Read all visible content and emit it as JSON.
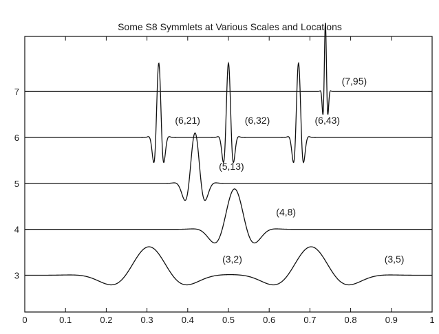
{
  "chart_data": {
    "type": "line",
    "title": "Some S8 Symmlets at Various Scales and Locations",
    "xlabel": "",
    "ylabel": "",
    "xlim": [
      0,
      1
    ],
    "ylim": [
      2.2,
      8.2
    ],
    "grid": false,
    "x_ticks": [
      {
        "value": 0,
        "label": "0"
      },
      {
        "value": 0.1,
        "label": "0.1"
      },
      {
        "value": 0.2,
        "label": "0.2"
      },
      {
        "value": 0.3,
        "label": "0.3"
      },
      {
        "value": 0.4,
        "label": "0.4"
      },
      {
        "value": 0.5,
        "label": "0.5"
      },
      {
        "value": 0.6,
        "label": "0.6"
      },
      {
        "value": 0.7,
        "label": "0.7"
      },
      {
        "value": 0.8,
        "label": "0.8"
      },
      {
        "value": 0.9,
        "label": "0.9"
      },
      {
        "value": 1,
        "label": "1"
      }
    ],
    "y_ticks": [
      {
        "value": 3,
        "label": "3"
      },
      {
        "value": 4,
        "label": "4"
      },
      {
        "value": 5,
        "label": "5"
      },
      {
        "value": 6,
        "label": "6"
      },
      {
        "value": 7,
        "label": "7"
      }
    ],
    "series": [
      {
        "baseline": 3,
        "atoms": [
          {
            "center": 0.305,
            "width": 0.11,
            "amp": 0.62,
            "label": "(3,2)"
          },
          {
            "center": 0.703,
            "width": 0.11,
            "amp": 0.62,
            "label": "(3,5)"
          }
        ]
      },
      {
        "baseline": 4,
        "atoms": [
          {
            "center": 0.515,
            "width": 0.058,
            "amp": 0.88,
            "label": "(4,8)"
          }
        ]
      },
      {
        "baseline": 5,
        "atoms": [
          {
            "center": 0.418,
            "width": 0.029,
            "amp": 1.1,
            "label": "(5,13)"
          }
        ]
      },
      {
        "baseline": 6,
        "atoms": [
          {
            "center": 0.329,
            "width": 0.0145,
            "amp": 1.62,
            "label": "(6,21)"
          },
          {
            "center": 0.5,
            "width": 0.0145,
            "amp": 1.62,
            "label": "(6,32)"
          },
          {
            "center": 0.672,
            "width": 0.0145,
            "amp": 1.62,
            "label": "(6,43)"
          }
        ]
      },
      {
        "baseline": 7,
        "atoms": [
          {
            "center": 0.738,
            "width": 0.0072,
            "amp": 1.5,
            "label": "(7,95)"
          }
        ]
      }
    ],
    "colors": {
      "line": "#111111",
      "axes": "#111111",
      "background": "#ffffff"
    }
  }
}
